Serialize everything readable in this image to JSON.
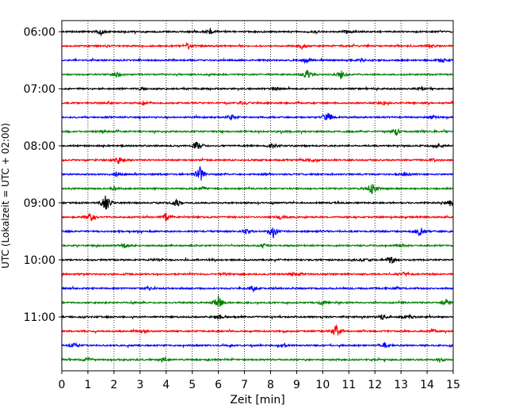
{
  "chart_data": {
    "type": "line",
    "title": "",
    "xlabel": "Zeit  [min]",
    "ylabel": "UTC (Lokalzeit = UTC + 02:00)",
    "xlim": [
      0,
      15
    ],
    "x_ticks": [
      "0",
      "1",
      "2",
      "3",
      "4",
      "5",
      "6",
      "7",
      "8",
      "9",
      "10",
      "11",
      "12",
      "13",
      "14",
      "15"
    ],
    "y_ticks": [
      "06:00",
      "07:00",
      "08:00",
      "09:00",
      "10:00",
      "11:00"
    ],
    "grid": "vertical dotted",
    "legend": "none",
    "trace_start": "06:00",
    "trace_interval_min": 15,
    "colors": [
      "#000000",
      "#ff0000",
      "#0000ff",
      "#008000"
    ],
    "series": [
      {
        "start": "06:00",
        "color": "#000000",
        "events": [
          [
            1.5,
            4
          ],
          [
            5.7,
            3
          ],
          [
            9.7,
            2
          ],
          [
            10.9,
            2
          ]
        ]
      },
      {
        "start": "06:15",
        "color": "#ff0000",
        "events": [
          [
            4.8,
            4
          ],
          [
            9.2,
            3
          ],
          [
            14.1,
            2
          ]
        ]
      },
      {
        "start": "06:30",
        "color": "#0000ff",
        "events": [
          [
            9.4,
            3
          ],
          [
            14.6,
            3
          ],
          [
            11.5,
            2
          ]
        ]
      },
      {
        "start": "06:45",
        "color": "#008000",
        "events": [
          [
            2.1,
            4
          ],
          [
            9.4,
            5
          ],
          [
            10.7,
            5
          ]
        ]
      },
      {
        "start": "07:00",
        "color": "#000000",
        "events": [
          [
            3.0,
            2
          ],
          [
            8.2,
            2
          ],
          [
            13.8,
            2
          ]
        ]
      },
      {
        "start": "07:15",
        "color": "#ff0000",
        "events": [
          [
            3.1,
            2
          ],
          [
            6.9,
            2
          ],
          [
            12.3,
            2
          ]
        ]
      },
      {
        "start": "07:30",
        "color": "#0000ff",
        "events": [
          [
            10.2,
            6
          ],
          [
            6.5,
            3
          ],
          [
            14.2,
            3
          ]
        ]
      },
      {
        "start": "07:45",
        "color": "#008000",
        "events": [
          [
            12.8,
            5
          ],
          [
            1.6,
            2
          ],
          [
            8.4,
            2
          ]
        ]
      },
      {
        "start": "08:00",
        "color": "#000000",
        "events": [
          [
            5.2,
            7
          ],
          [
            8.1,
            3
          ],
          [
            14.4,
            4
          ]
        ]
      },
      {
        "start": "08:15",
        "color": "#ff0000",
        "events": [
          [
            2.2,
            6
          ],
          [
            9.5,
            3
          ],
          [
            14.3,
            2
          ]
        ]
      },
      {
        "start": "08:30",
        "color": "#0000ff",
        "events": [
          [
            5.3,
            11
          ],
          [
            2.1,
            3
          ],
          [
            13.2,
            3
          ]
        ]
      },
      {
        "start": "08:45",
        "color": "#008000",
        "events": [
          [
            11.9,
            7
          ],
          [
            5.4,
            2
          ],
          [
            2.0,
            2
          ]
        ]
      },
      {
        "start": "09:00",
        "color": "#000000",
        "events": [
          [
            1.7,
            12
          ],
          [
            4.4,
            6
          ],
          [
            14.9,
            5
          ]
        ]
      },
      {
        "start": "09:15",
        "color": "#ff0000",
        "events": [
          [
            1.1,
            6
          ],
          [
            4.0,
            6
          ],
          [
            8.4,
            3
          ]
        ]
      },
      {
        "start": "09:30",
        "color": "#0000ff",
        "events": [
          [
            8.1,
            9
          ],
          [
            7.1,
            4
          ],
          [
            13.7,
            6
          ]
        ]
      },
      {
        "start": "09:45",
        "color": "#008000",
        "events": [
          [
            2.4,
            3
          ],
          [
            7.7,
            3
          ],
          [
            13.0,
            2
          ]
        ]
      },
      {
        "start": "10:00",
        "color": "#000000",
        "events": [
          [
            12.6,
            6
          ],
          [
            11.6,
            3
          ],
          [
            3.7,
            2
          ]
        ]
      },
      {
        "start": "10:15",
        "color": "#ff0000",
        "events": [
          [
            6.2,
            2
          ],
          [
            8.9,
            2
          ],
          [
            13.1,
            2
          ]
        ]
      },
      {
        "start": "10:30",
        "color": "#0000ff",
        "events": [
          [
            7.3,
            3
          ],
          [
            12.8,
            2
          ],
          [
            3.3,
            2
          ]
        ]
      },
      {
        "start": "10:45",
        "color": "#008000",
        "events": [
          [
            6.0,
            10
          ],
          [
            10.0,
            3
          ],
          [
            14.7,
            4
          ]
        ]
      },
      {
        "start": "11:00",
        "color": "#000000",
        "events": [
          [
            6.0,
            4
          ],
          [
            12.3,
            3
          ],
          [
            13.3,
            3
          ]
        ]
      },
      {
        "start": "11:15",
        "color": "#ff0000",
        "events": [
          [
            10.5,
            8
          ],
          [
            14.2,
            2
          ],
          [
            3.1,
            2
          ]
        ]
      },
      {
        "start": "11:30",
        "color": "#0000ff",
        "events": [
          [
            0.5,
            3
          ],
          [
            12.4,
            3
          ],
          [
            8.5,
            2
          ]
        ]
      },
      {
        "start": "11:45",
        "color": "#008000",
        "events": [
          [
            1.0,
            3
          ],
          [
            3.9,
            3
          ],
          [
            14.5,
            2
          ]
        ]
      }
    ]
  }
}
